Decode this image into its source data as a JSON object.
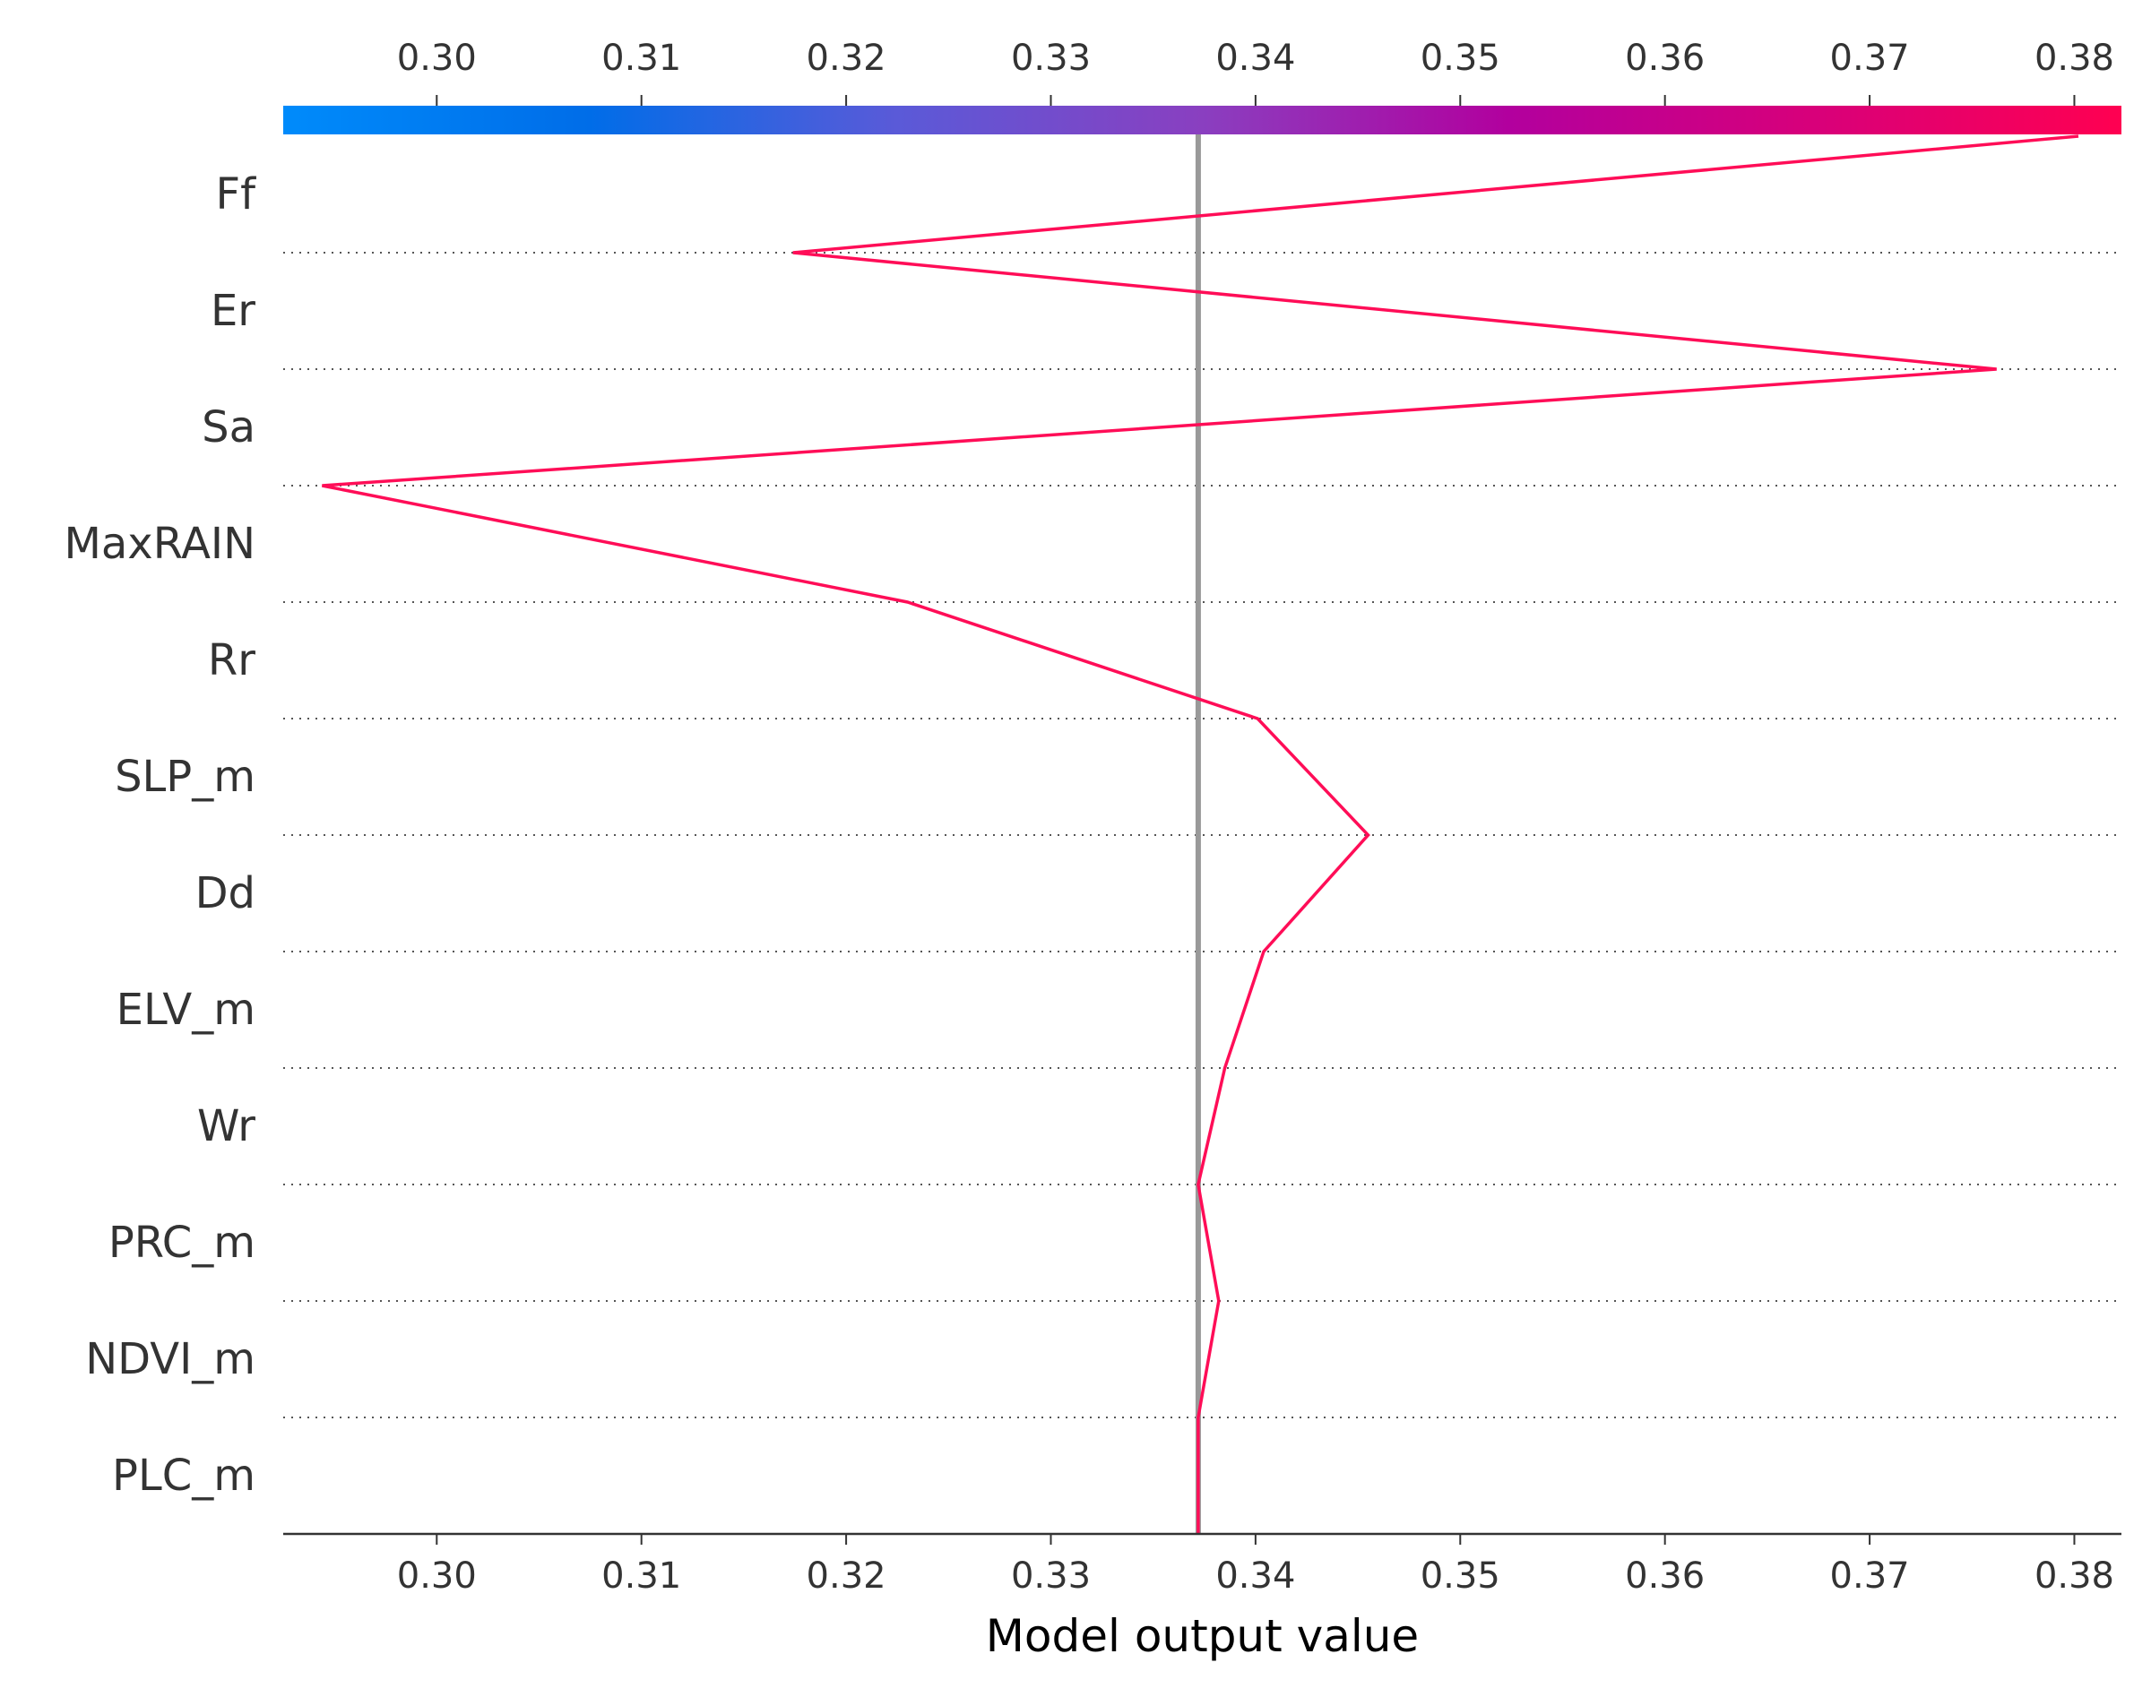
{
  "chart_data": {
    "type": "line",
    "title": "",
    "xlabel": "Model output value",
    "ylabel": "",
    "xlim": [
      0.2925,
      0.3823
    ],
    "xticks": [
      0.3,
      0.31,
      0.32,
      0.33,
      0.34,
      0.35,
      0.36,
      0.37,
      0.38
    ],
    "xtick_labels": [
      "0.30",
      "0.31",
      "0.32",
      "0.33",
      "0.34",
      "0.35",
      "0.36",
      "0.37",
      "0.38"
    ],
    "base_value": 0.3372,
    "features": [
      "Ff",
      "Er",
      "Sa",
      "MaxRAIN",
      "Rr",
      "SLP_m",
      "Dd",
      "ELV_m",
      "Wr",
      "PRC_m",
      "NDVI_m",
      "PLC_m"
    ],
    "path_values": [
      0.3802,
      0.3174,
      0.3762,
      0.2944,
      0.323,
      0.3401,
      0.3455,
      0.3404,
      0.3385,
      0.3372,
      0.3382,
      0.3372
    ],
    "line_color": "#ff0d57",
    "base_line_color": "#999999",
    "colorbar_stops": [
      "#008bfb",
      "#006de8",
      "#5a5ad8",
      "#8a3fc0",
      "#b2009e",
      "#d8007a",
      "#ff0051"
    ],
    "grid": "dotted horizontal"
  }
}
